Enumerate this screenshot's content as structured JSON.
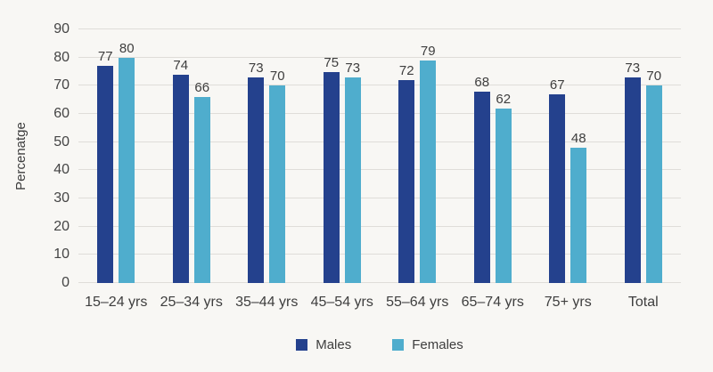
{
  "chart_data": {
    "type": "bar",
    "title": "",
    "xlabel": "",
    "ylabel": "Percenatge",
    "categories": [
      "15–24 yrs",
      "25–34 yrs",
      "35–44 yrs",
      "45–54 yrs",
      "55–64 yrs",
      "65–74 yrs",
      "75+ yrs",
      "Total"
    ],
    "series": [
      {
        "name": "Males",
        "color": "#24418D",
        "values": [
          77,
          74,
          73,
          75,
          72,
          68,
          67,
          73
        ]
      },
      {
        "name": "Females",
        "color": "#4FADCD",
        "values": [
          80,
          66,
          70,
          73,
          79,
          62,
          48,
          70
        ]
      }
    ],
    "ylim": [
      0,
      90
    ],
    "yticks": [
      0,
      10,
      20,
      30,
      40,
      50,
      60,
      70,
      80,
      90
    ],
    "grid": true,
    "legend_position": "bottom",
    "value_labels": true
  },
  "colors": {
    "background": "#F8F7F4",
    "gridline": "#DFDDD9",
    "text": "#3E3E3E"
  }
}
